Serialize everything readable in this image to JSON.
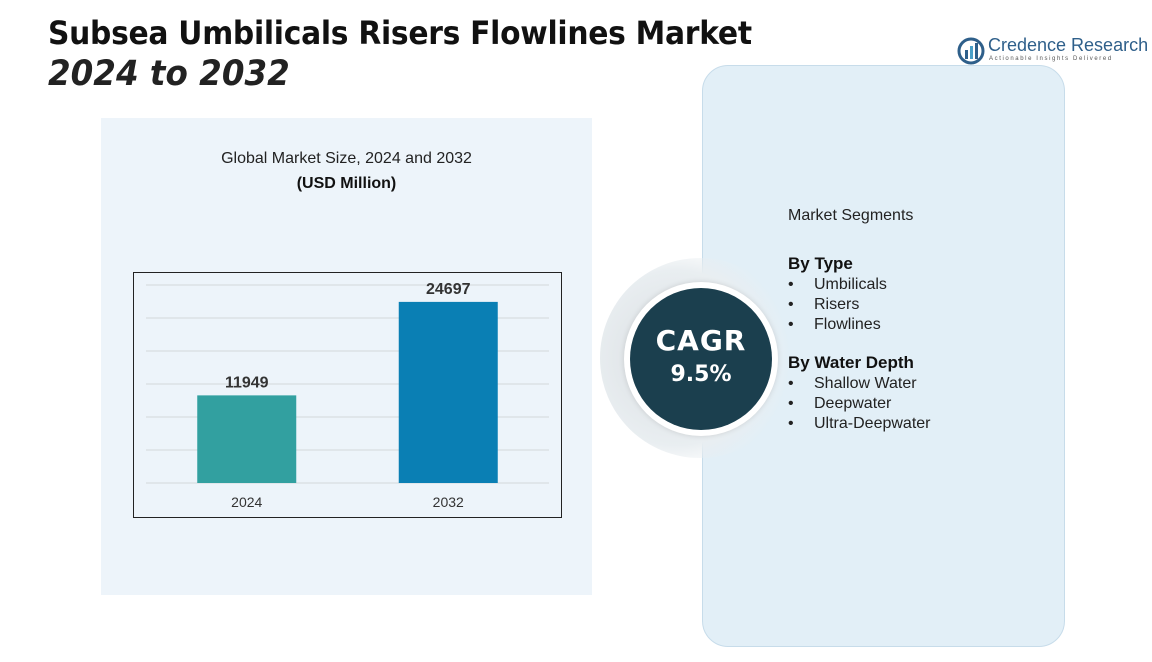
{
  "header": {
    "title": "Subsea Umbilicals Risers Flowlines Market",
    "subtitle": "2024 to 2032"
  },
  "logo": {
    "name": "Credence Research",
    "tagline": "Actionable Insights Delivered"
  },
  "chart_data": {
    "type": "bar",
    "title": "Global Market Size, 2024 and 2032",
    "unit_label": "(USD Million)",
    "categories": [
      "2024",
      "2032"
    ],
    "values": [
      11949,
      24697
    ],
    "data_labels": [
      "11949",
      "24697"
    ],
    "colors": [
      "#32a0a0",
      "#0a7fb4"
    ],
    "ylim": [
      0,
      27000
    ],
    "grid": true,
    "xlabel": "",
    "ylabel": ""
  },
  "cagr": {
    "label": "CAGR",
    "value": "9.5%"
  },
  "segments": {
    "heading": "Market Segments",
    "groups": [
      {
        "title": "By Type",
        "items": [
          "Umbilicals",
          "Risers",
          "Flowlines"
        ]
      },
      {
        "title": "By Water Depth",
        "items": [
          "Shallow Water",
          "Deepwater",
          "Ultra-Deepwater"
        ]
      }
    ]
  }
}
